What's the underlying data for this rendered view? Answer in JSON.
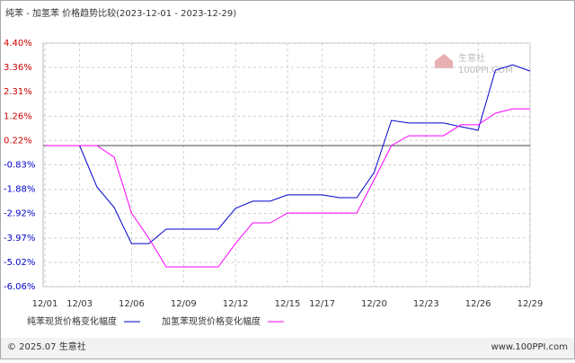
{
  "chart_data": {
    "type": "line",
    "title": "纯苯 - 加氢苯 价格趋势比较(2023-12-01 - 2023-12-29)",
    "categories": [
      "12/01",
      null,
      "12/03",
      null,
      null,
      "12/06",
      null,
      null,
      "12/09",
      null,
      null,
      "12/12",
      null,
      null,
      "12/15",
      null,
      "12/17",
      null,
      null,
      "12/20",
      null,
      null,
      "12/23",
      null,
      null,
      "12/26",
      null,
      null,
      "12/29"
    ],
    "series": [
      {
        "name": "纯苯现货价格变化幅度",
        "color": "#0000cc",
        "values": [
          0,
          0,
          0,
          -1.78,
          -2.66,
          -4.21,
          -4.21,
          -3.59,
          -3.59,
          -3.59,
          -3.59,
          -2.7,
          -2.39,
          -2.39,
          -2.12,
          -2.12,
          -2.12,
          -2.24,
          -2.24,
          -1.16,
          1.08,
          0.97,
          0.97,
          0.97,
          0.81,
          0.66,
          3.24,
          3.47,
          3.2
        ]
      },
      {
        "name": "加氢苯现货价格变化幅度",
        "color": "#ff00ff",
        "values": [
          0,
          0,
          0,
          0,
          -0.5,
          -2.9,
          -3.98,
          -5.21,
          -5.21,
          -5.21,
          -5.21,
          -4.21,
          -3.32,
          -3.32,
          -2.9,
          -2.9,
          -2.9,
          -2.9,
          -2.9,
          -1.47,
          0,
          0.42,
          0.42,
          0.42,
          0.89,
          0.89,
          1.39,
          1.58,
          1.58
        ]
      }
    ],
    "ylim": [
      -6.06,
      4.4
    ],
    "yticks": [
      {
        "value": 4.4,
        "label": "4.40%"
      },
      {
        "value": 3.36,
        "label": "3.36%"
      },
      {
        "value": 2.31,
        "label": "2.31%"
      },
      {
        "value": 1.26,
        "label": "1.26%"
      },
      {
        "value": 0.22,
        "label": "0.22%"
      },
      {
        "value": -0.83,
        "label": "-0.83%"
      },
      {
        "value": -1.88,
        "label": "-1.88%"
      },
      {
        "value": -2.92,
        "label": "-2.92%"
      },
      {
        "value": -3.97,
        "label": "-3.97%"
      },
      {
        "value": -5.02,
        "label": "-5.02%"
      },
      {
        "value": -6.06,
        "label": "-6.06%"
      }
    ],
    "grid": true,
    "watermark": {
      "name": "生意社",
      "site": "100PPI.COM"
    },
    "footer": {
      "left": "© 2025.07 生意社",
      "right": "www.100PPI.com"
    }
  }
}
